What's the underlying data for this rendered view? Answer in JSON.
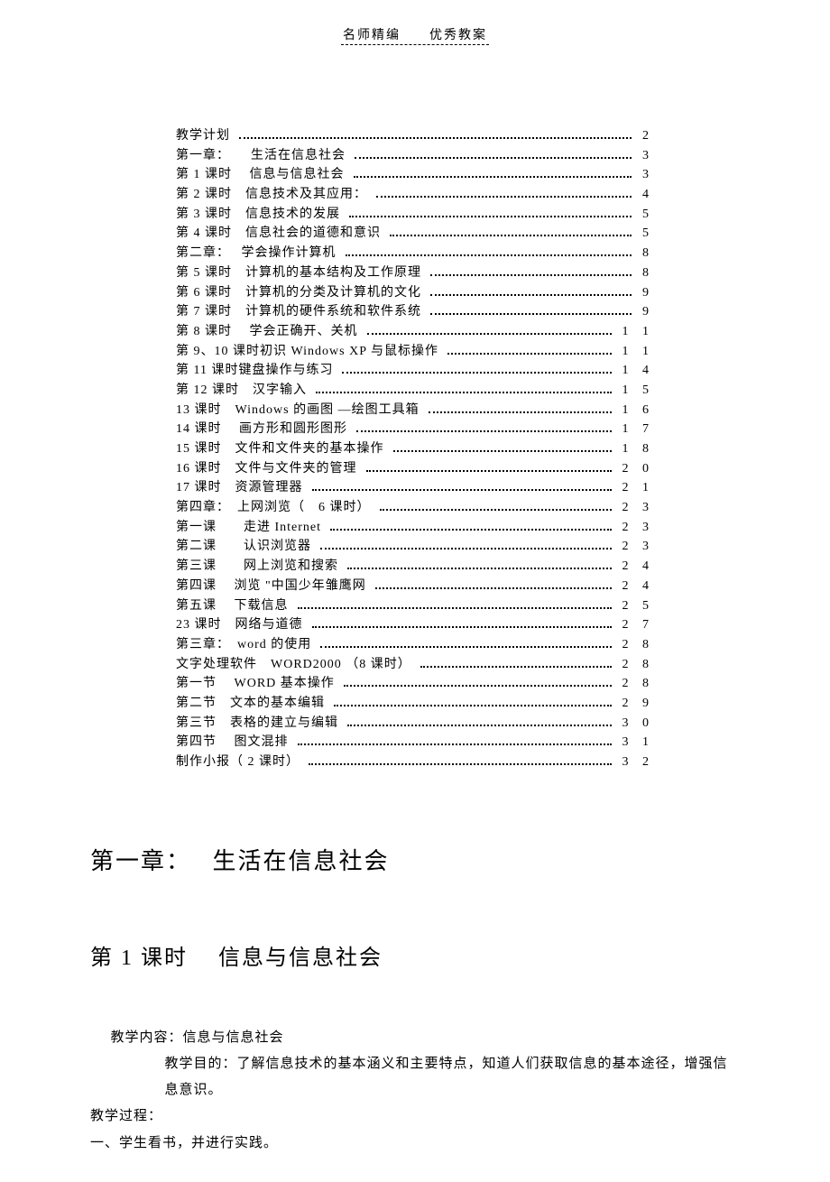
{
  "header": {
    "left": "名师精编",
    "right": "优秀教案"
  },
  "toc": [
    {
      "label": "教学计划",
      "page": "2"
    },
    {
      "label": "第一章：　　生活在信息社会",
      "page": "3"
    },
    {
      "label": "第 1 课时　 信息与信息社会",
      "page": "3"
    },
    {
      "label": "第 2 课时　信息技术及其应用：",
      "page": "4"
    },
    {
      "label": "第 3 课时　信息技术的发展",
      "page": "5"
    },
    {
      "label": "第 4 课时　信息社会的道德和意识",
      "page": "5"
    },
    {
      "label": "第二章：　 学会操作计算机",
      "page": "8"
    },
    {
      "label": "第 5 课时　计算机的基本结构及工作原理",
      "page": "8"
    },
    {
      "label": "第 6 课时　计算机的分类及计算机的文化",
      "page": "9"
    },
    {
      "label": "第 7 课时　计算机的硬件系统和软件系统",
      "page": "9"
    },
    {
      "label": "第 8 课时　 学会正确开、关机",
      "page": "1 1"
    },
    {
      "label": "第 9、10 课时初识   Windows XP   与鼠标操作",
      "page": "1 1"
    },
    {
      "label": "第 11 课时键盘操作与练习",
      "page": "1 4"
    },
    {
      "label": "第 12 课时　汉字输入",
      "page": "1 5"
    },
    {
      "label": "13 课时　Windows  的画图 —绘图工具箱",
      "page": "1 6"
    },
    {
      "label": "14 课时　 画方形和圆形图形",
      "page": "1 7"
    },
    {
      "label": "15 课时　文件和文件夹的基本操作",
      "page": "1 8"
    },
    {
      "label": "16 课时　文件与文件夹的管理",
      "page": "2 0"
    },
    {
      "label": "17 课时　资源管理器",
      "page": "2 1"
    },
    {
      "label": "第四章：　上网浏览（　6 课时）",
      "page": "2 3"
    },
    {
      "label": "第一课　　走进 Internet",
      "page": "2 3"
    },
    {
      "label": "第二课　　认识浏览器",
      "page": "2 3"
    },
    {
      "label": "第三课　　网上浏览和搜索",
      "page": "2 4"
    },
    {
      "label": "第四课　 浏览 \"中国少年雏鹰网",
      "page": "2 4"
    },
    {
      "label": "第五课　 下载信息",
      "page": "2 5"
    },
    {
      "label": "23 课时　网络与道德",
      "page": "2 7"
    },
    {
      "label": "第三章：　word 的使用",
      "page": "2 8"
    },
    {
      "label": "文字处理软件　WORD2000 （8 课时）",
      "page": "2 8"
    },
    {
      "label": "第一节　 WORD 基本操作",
      "page": "2 8"
    },
    {
      "label": "第二节　文本的基本编辑",
      "page": "2 9"
    },
    {
      "label": "第三节　表格的建立与编辑",
      "page": "3 0"
    },
    {
      "label": "第四节　 图文混排",
      "page": "3 1"
    },
    {
      "label": "制作小报（  2 课时）",
      "page": "3 2"
    }
  ],
  "chapter": {
    "title": "第一章：　 生活在信息社会"
  },
  "section": {
    "title": "第 1 课时　 信息与信息社会"
  },
  "body": {
    "p1": "教学内容：信息与信息社会",
    "p2": "教学目的：了解信息技术的基本涵义和主要特点，知道人们获取信息的基本途径，增强信息意识。",
    "p3": "教学过程：",
    "p4": "一、学生看书，并进行实践。"
  },
  "style": {
    "text_color": "#000000",
    "background_color": "#ffffff",
    "toc_fontsize": 14,
    "heading1_fontsize": 26,
    "heading2_fontsize": 24,
    "body_fontsize": 15
  }
}
